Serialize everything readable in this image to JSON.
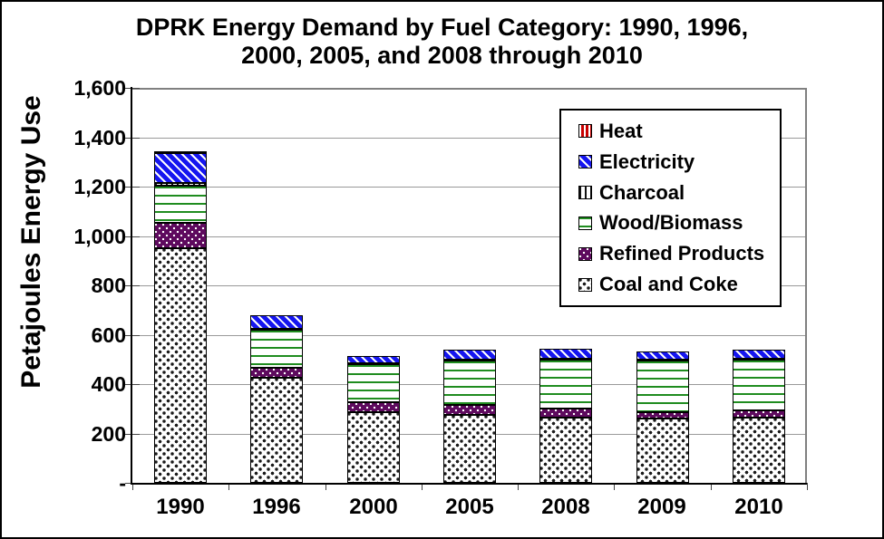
{
  "chart_data": {
    "type": "stacked-bar",
    "title": "DPRK Energy Demand by Fuel Category: 1990, 1996, 2000, 2005, and 2008 through 2010",
    "title_line1": "DPRK Energy Demand by Fuel Category: 1990, 1996,",
    "title_line2": "2000, 2005, and 2008 through 2010",
    "ylabel": "Petajoules Energy Use",
    "units": "petajoules",
    "categories": [
      "1990",
      "1996",
      "2000",
      "2005",
      "2008",
      "2009",
      "2010"
    ],
    "ylim": [
      0,
      1600
    ],
    "ytick_interval": 200,
    "ytick_labels_bottom_to_top": [
      "-",
      "200",
      "400",
      "600",
      "800",
      "1,000",
      "1,200",
      "1,400",
      "1,600"
    ],
    "grid": "horizontal",
    "legend_position": "inside-top-right",
    "stack_order_bottom_to_top": [
      "Coal and Coke",
      "Refined Products",
      "Wood/Biomass",
      "Charcoal",
      "Electricity",
      "Heat"
    ],
    "legend_order_top_to_bottom": [
      "Heat",
      "Electricity",
      "Charcoal",
      "Wood/Biomass",
      "Refined Products",
      "Coal and Coke"
    ],
    "series": [
      {
        "name": "Coal and Coke",
        "pattern": "black-speckle-on-white",
        "fill": "#FFFFFF",
        "accent": "#1A1A1A",
        "values": [
          950,
          425,
          285,
          275,
          265,
          260,
          265
        ]
      },
      {
        "name": "Refined Products",
        "pattern": "white-dots-on-purple",
        "fill": "#5E0A5E",
        "accent": "#FFFFFF",
        "values": [
          105,
          40,
          40,
          40,
          35,
          25,
          30
        ]
      },
      {
        "name": "Wood/Biomass",
        "pattern": "green-hlines-on-white",
        "fill": "#FFFFFF",
        "accent": "#1F8C1F",
        "values": [
          150,
          155,
          155,
          180,
          200,
          210,
          205
        ]
      },
      {
        "name": "Charcoal",
        "pattern": "black-vlines-on-white",
        "fill": "#FFFFFF",
        "accent": "#111111",
        "values": [
          10,
          5,
          3,
          3,
          3,
          3,
          3
        ]
      },
      {
        "name": "Electricity",
        "pattern": "white-diag-stripes-on-blue",
        "fill": "#1616F0",
        "accent": "#FFFFFF",
        "values": [
          120,
          55,
          30,
          40,
          40,
          35,
          35
        ]
      },
      {
        "name": "Heat",
        "pattern": "white-vlines-on-red",
        "fill": "#C90000",
        "accent": "#FFFFFF",
        "values": [
          8,
          0,
          0,
          0,
          0,
          0,
          0
        ]
      }
    ],
    "totals_approx": [
      1343,
      680,
      513,
      538,
      543,
      533,
      538
    ],
    "colors": {
      "gridline": "#999999",
      "axis": "#000000",
      "text": "#000000",
      "background": "#FFFFFF",
      "plot_border": "#808080",
      "electricity_blue": "#1616F0",
      "wood_green": "#1F8C1F",
      "refined_purple": "#5E0A5E",
      "heat_red": "#C90000"
    }
  }
}
